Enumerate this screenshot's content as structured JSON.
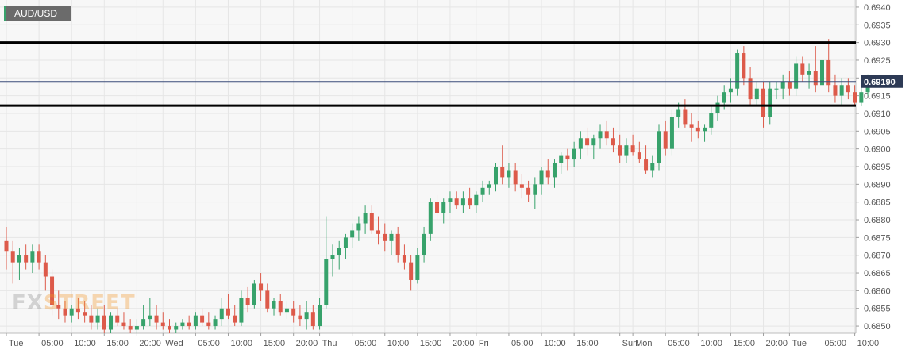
{
  "ticker": {
    "symbol": "AUD/USD"
  },
  "watermark": {
    "part1": "FX",
    "part2": "STREET"
  },
  "chart_data": {
    "type": "candlestick",
    "symbol": "AUD/USD",
    "ylim": [
      0.6848,
      0.6942
    ],
    "y_ticks": [
      "0.6940",
      "0.6935",
      "0.6930",
      "0.6925",
      "0.6920",
      "0.6915",
      "0.6910",
      "0.6905",
      "0.6900",
      "0.6895",
      "0.6890",
      "0.6885",
      "0.6880",
      "0.6875",
      "0.6870",
      "0.6865",
      "0.6860",
      "0.6855",
      "0.6850"
    ],
    "x_ticks": [
      {
        "label": "Tue",
        "i": 0
      },
      {
        "label": "05:00",
        "i": 5
      },
      {
        "label": "10:00",
        "i": 10
      },
      {
        "label": "15:00",
        "i": 15
      },
      {
        "label": "20:00",
        "i": 20
      },
      {
        "label": "Wed",
        "i": 24
      },
      {
        "label": "05:00",
        "i": 29
      },
      {
        "label": "10:00",
        "i": 34
      },
      {
        "label": "15:00",
        "i": 39
      },
      {
        "label": "20:00",
        "i": 44
      },
      {
        "label": "Thu",
        "i": 48
      },
      {
        "label": "05:00",
        "i": 53
      },
      {
        "label": "10:00",
        "i": 58
      },
      {
        "label": "15:00",
        "i": 63
      },
      {
        "label": "20:00",
        "i": 68
      },
      {
        "label": "Fri",
        "i": 72
      },
      {
        "label": "05:00",
        "i": 77
      },
      {
        "label": "10:00",
        "i": 82
      },
      {
        "label": "15:00",
        "i": 87
      },
      {
        "label": "Sun",
        "i": 94
      },
      {
        "label": "Mon",
        "i": 96
      },
      {
        "label": "05:00",
        "i": 101
      },
      {
        "label": "10:00",
        "i": 106
      },
      {
        "label": "15:00",
        "i": 111
      },
      {
        "label": "20:00",
        "i": 116
      },
      {
        "label": "Tue",
        "i": 120
      },
      {
        "label": "05:00",
        "i": 125
      },
      {
        "label": "10:00",
        "i": 130
      }
    ],
    "current_price": "0.69190",
    "horizontal_lines": [
      0.693,
      0.69122
    ],
    "candles": [
      [
        0.6874,
        0.6878,
        0.6866,
        0.6871
      ],
      [
        0.6871,
        0.6874,
        0.6862,
        0.6868
      ],
      [
        0.6868,
        0.6872,
        0.6863,
        0.687
      ],
      [
        0.687,
        0.6873,
        0.6866,
        0.6868
      ],
      [
        0.6868,
        0.6873,
        0.6865,
        0.6871
      ],
      [
        0.6871,
        0.6873,
        0.6866,
        0.6868
      ],
      [
        0.6868,
        0.687,
        0.686,
        0.6864
      ],
      [
        0.6864,
        0.6866,
        0.6853,
        0.6856
      ],
      [
        0.6856,
        0.686,
        0.6852,
        0.6855
      ],
      [
        0.6855,
        0.6857,
        0.6851,
        0.6853
      ],
      [
        0.6853,
        0.6856,
        0.6851,
        0.6855
      ],
      [
        0.6855,
        0.6858,
        0.6852,
        0.6854
      ],
      [
        0.6854,
        0.6857,
        0.6851,
        0.6853
      ],
      [
        0.6853,
        0.6856,
        0.6849,
        0.6851
      ],
      [
        0.6851,
        0.6855,
        0.6849,
        0.6853
      ],
      [
        0.6853,
        0.6856,
        0.6848,
        0.6849
      ],
      [
        0.6849,
        0.6854,
        0.6848,
        0.6853
      ],
      [
        0.6853,
        0.6855,
        0.685,
        0.6851
      ],
      [
        0.6851,
        0.6854,
        0.6849,
        0.685
      ],
      [
        0.685,
        0.6852,
        0.6848,
        0.6849
      ],
      [
        0.6849,
        0.6852,
        0.6848,
        0.685
      ],
      [
        0.685,
        0.6856,
        0.6849,
        0.6852
      ],
      [
        0.6852,
        0.6858,
        0.685,
        0.6853
      ],
      [
        0.6853,
        0.6856,
        0.6849,
        0.6851
      ],
      [
        0.6851,
        0.6854,
        0.6849,
        0.685
      ],
      [
        0.685,
        0.6852,
        0.6848,
        0.6849
      ],
      [
        0.6849,
        0.6851,
        0.6848,
        0.685
      ],
      [
        0.685,
        0.6852,
        0.6849,
        0.6851
      ],
      [
        0.6851,
        0.6853,
        0.6849,
        0.685
      ],
      [
        0.685,
        0.6854,
        0.6849,
        0.6853
      ],
      [
        0.6853,
        0.6855,
        0.685,
        0.6851
      ],
      [
        0.6851,
        0.6854,
        0.6849,
        0.685
      ],
      [
        0.685,
        0.6853,
        0.6849,
        0.6852
      ],
      [
        0.6852,
        0.6858,
        0.685,
        0.6855
      ],
      [
        0.6855,
        0.6859,
        0.6852,
        0.6853
      ],
      [
        0.6853,
        0.6856,
        0.685,
        0.6851
      ],
      [
        0.6851,
        0.686,
        0.685,
        0.6858
      ],
      [
        0.6858,
        0.6861,
        0.6854,
        0.6856
      ],
      [
        0.6856,
        0.6863,
        0.6855,
        0.6862
      ],
      [
        0.6862,
        0.6865,
        0.6857,
        0.686
      ],
      [
        0.686,
        0.6862,
        0.6854,
        0.6855
      ],
      [
        0.6855,
        0.6858,
        0.6853,
        0.6857
      ],
      [
        0.6857,
        0.6859,
        0.6853,
        0.6854
      ],
      [
        0.6854,
        0.6857,
        0.6852,
        0.6855
      ],
      [
        0.6855,
        0.6857,
        0.6851,
        0.6853
      ],
      [
        0.6853,
        0.6856,
        0.685,
        0.6852
      ],
      [
        0.6852,
        0.6857,
        0.6849,
        0.6854
      ],
      [
        0.6854,
        0.6856,
        0.6849,
        0.685
      ],
      [
        0.685,
        0.6858,
        0.6849,
        0.6856
      ],
      [
        0.6856,
        0.6881,
        0.6855,
        0.6869
      ],
      [
        0.6869,
        0.6873,
        0.6864,
        0.687
      ],
      [
        0.687,
        0.6874,
        0.6866,
        0.6872
      ],
      [
        0.6872,
        0.6876,
        0.6869,
        0.6875
      ],
      [
        0.6875,
        0.6879,
        0.6872,
        0.6877
      ],
      [
        0.6877,
        0.6881,
        0.6874,
        0.6879
      ],
      [
        0.6879,
        0.6884,
        0.6876,
        0.6882
      ],
      [
        0.6882,
        0.6884,
        0.6876,
        0.6877
      ],
      [
        0.6877,
        0.6881,
        0.6873,
        0.6876
      ],
      [
        0.6876,
        0.6879,
        0.6871,
        0.6874
      ],
      [
        0.6874,
        0.6877,
        0.687,
        0.6876
      ],
      [
        0.6876,
        0.6878,
        0.6868,
        0.687
      ],
      [
        0.687,
        0.6873,
        0.6866,
        0.6868
      ],
      [
        0.6868,
        0.687,
        0.686,
        0.6863
      ],
      [
        0.6863,
        0.6872,
        0.6862,
        0.687
      ],
      [
        0.687,
        0.6878,
        0.6868,
        0.6876
      ],
      [
        0.6876,
        0.6886,
        0.6874,
        0.6885
      ],
      [
        0.6885,
        0.6887,
        0.688,
        0.6882
      ],
      [
        0.6882,
        0.6886,
        0.6879,
        0.6885
      ],
      [
        0.6885,
        0.6888,
        0.6882,
        0.6886
      ],
      [
        0.6886,
        0.6888,
        0.6883,
        0.6884
      ],
      [
        0.6884,
        0.6888,
        0.6882,
        0.6886
      ],
      [
        0.6886,
        0.6889,
        0.6883,
        0.6884
      ],
      [
        0.6884,
        0.6888,
        0.6882,
        0.6887
      ],
      [
        0.6887,
        0.6891,
        0.6885,
        0.6889
      ],
      [
        0.6889,
        0.6891,
        0.6887,
        0.689
      ],
      [
        0.689,
        0.6896,
        0.6888,
        0.6895
      ],
      [
        0.6895,
        0.6901,
        0.689,
        0.6892
      ],
      [
        0.6892,
        0.6896,
        0.6889,
        0.6894
      ],
      [
        0.6894,
        0.6896,
        0.6888,
        0.689
      ],
      [
        0.689,
        0.6893,
        0.6886,
        0.6889
      ],
      [
        0.6889,
        0.6891,
        0.6885,
        0.6887
      ],
      [
        0.6887,
        0.6892,
        0.6883,
        0.689
      ],
      [
        0.689,
        0.6895,
        0.6887,
        0.6894
      ],
      [
        0.6894,
        0.6897,
        0.689,
        0.6892
      ],
      [
        0.6892,
        0.6897,
        0.6889,
        0.6896
      ],
      [
        0.6896,
        0.6899,
        0.6893,
        0.6898
      ],
      [
        0.6898,
        0.69,
        0.6894,
        0.6897
      ],
      [
        0.6897,
        0.6902,
        0.6895,
        0.69
      ],
      [
        0.69,
        0.6905,
        0.6897,
        0.6903
      ],
      [
        0.6903,
        0.6906,
        0.6898,
        0.6901
      ],
      [
        0.6901,
        0.6904,
        0.6897,
        0.6903
      ],
      [
        0.6903,
        0.6907,
        0.69,
        0.6905
      ],
      [
        0.6905,
        0.6908,
        0.6901,
        0.6903
      ],
      [
        0.6903,
        0.6906,
        0.6899,
        0.6901
      ],
      [
        0.6901,
        0.6904,
        0.6896,
        0.6898
      ],
      [
        0.6898,
        0.6903,
        0.6896,
        0.6901
      ],
      [
        0.6901,
        0.6904,
        0.6898,
        0.6899
      ],
      [
        0.6899,
        0.6902,
        0.6896,
        0.6897
      ],
      [
        0.6897,
        0.6901,
        0.6893,
        0.6894
      ],
      [
        0.6894,
        0.6898,
        0.6892,
        0.6896
      ],
      [
        0.6896,
        0.6907,
        0.6894,
        0.6905
      ],
      [
        0.6905,
        0.6908,
        0.6898,
        0.69
      ],
      [
        0.69,
        0.6911,
        0.6898,
        0.6909
      ],
      [
        0.6909,
        0.6913,
        0.6906,
        0.6911
      ],
      [
        0.6911,
        0.6914,
        0.6906,
        0.6907
      ],
      [
        0.6907,
        0.691,
        0.6902,
        0.6906
      ],
      [
        0.6906,
        0.6908,
        0.6903,
        0.6905
      ],
      [
        0.6905,
        0.6907,
        0.6902,
        0.6906
      ],
      [
        0.6906,
        0.6912,
        0.6904,
        0.691
      ],
      [
        0.691,
        0.6915,
        0.6908,
        0.6913
      ],
      [
        0.6913,
        0.6918,
        0.6911,
        0.6916
      ],
      [
        0.6916,
        0.692,
        0.6913,
        0.6917
      ],
      [
        0.6917,
        0.6928,
        0.6915,
        0.6927
      ],
      [
        0.6927,
        0.6929,
        0.6918,
        0.692
      ],
      [
        0.692,
        0.6923,
        0.6912,
        0.6914
      ],
      [
        0.6914,
        0.6919,
        0.6912,
        0.6917
      ],
      [
        0.6917,
        0.6919,
        0.6906,
        0.6909
      ],
      [
        0.6909,
        0.6919,
        0.6907,
        0.6917
      ],
      [
        0.6917,
        0.6919,
        0.6914,
        0.6917
      ],
      [
        0.6917,
        0.6921,
        0.6914,
        0.6919
      ],
      [
        0.6919,
        0.6922,
        0.6915,
        0.6917
      ],
      [
        0.6917,
        0.6926,
        0.6915,
        0.6924
      ],
      [
        0.6924,
        0.6926,
        0.6919,
        0.6921
      ],
      [
        0.6921,
        0.6924,
        0.6917,
        0.6922
      ],
      [
        0.6922,
        0.6929,
        0.6916,
        0.6918
      ],
      [
        0.6918,
        0.6927,
        0.6914,
        0.6925
      ],
      [
        0.6925,
        0.6931,
        0.6916,
        0.6918
      ],
      [
        0.6918,
        0.6921,
        0.6913,
        0.6915
      ],
      [
        0.6915,
        0.692,
        0.6912,
        0.6918
      ],
      [
        0.6918,
        0.692,
        0.6914,
        0.6916
      ],
      [
        0.6916,
        0.6918,
        0.6912,
        0.6913
      ],
      [
        0.6913,
        0.6918,
        0.6912,
        0.6916
      ],
      [
        0.6916,
        0.6921,
        0.6915,
        0.6919
      ]
    ]
  }
}
